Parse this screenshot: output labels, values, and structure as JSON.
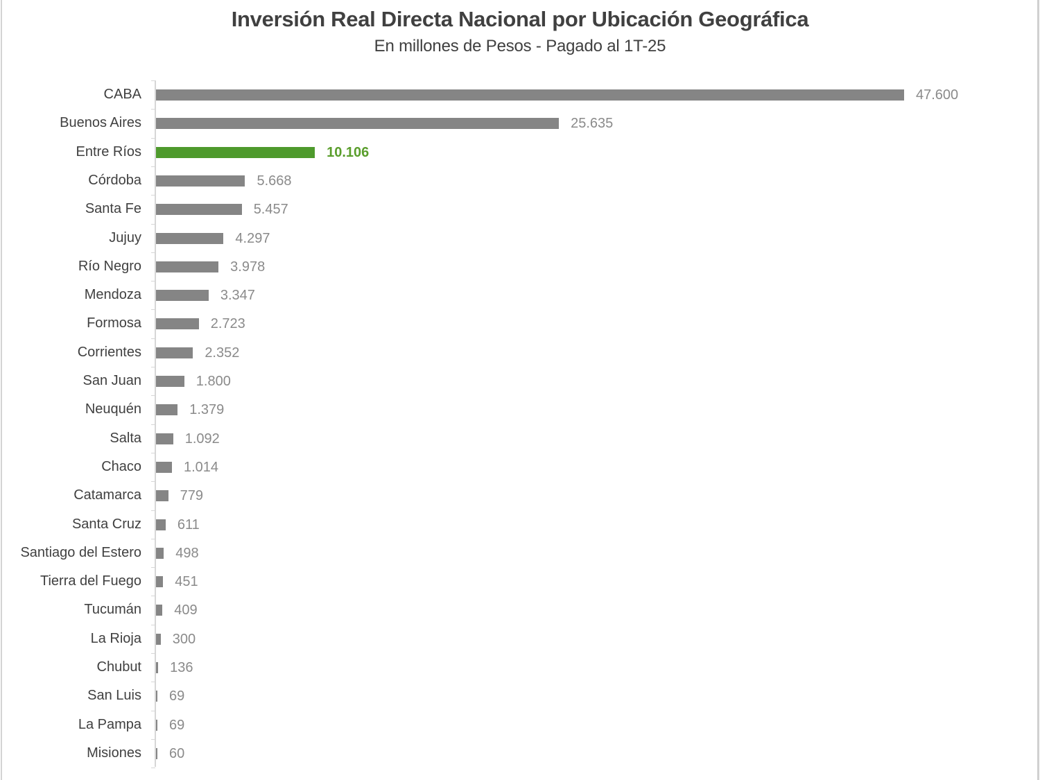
{
  "chart_data": {
    "type": "bar",
    "orientation": "horizontal",
    "title": "Inversión Real Directa Nacional por Ubicación Geográfica",
    "subtitle": "En millones de Pesos - Pagado al 1T-25",
    "xlabel": "",
    "ylabel": "",
    "grid": false,
    "legend": null,
    "highlight_category": "Entre Ríos",
    "colors": {
      "default": "#858585",
      "highlight": "#4e9a2c",
      "label_default": "#8a8a8a",
      "label_highlight": "#5a9e2c"
    },
    "categories": [
      "CABA",
      "Buenos Aires",
      "Entre Ríos",
      "Córdoba",
      "Santa Fe",
      "Jujuy",
      "Río Negro",
      "Mendoza",
      "Formosa",
      "Corrientes",
      "San Juan",
      "Neuquén",
      "Salta",
      "Chaco",
      "Catamarca",
      "Santa Cruz",
      "Santiago del Estero",
      "Tierra del Fuego",
      "Tucumán",
      "La Rioja",
      "Chubut",
      "San Luis",
      "La Pampa",
      "Misiones"
    ],
    "values": [
      47600,
      25635,
      10106,
      5668,
      5457,
      4297,
      3978,
      3347,
      2723,
      2352,
      1800,
      1379,
      1092,
      1014,
      779,
      611,
      498,
      451,
      409,
      300,
      136,
      69,
      69,
      60
    ],
    "value_labels": [
      "47.600",
      "25.635",
      "10.106",
      "5.668",
      "5.457",
      "4.297",
      "3.978",
      "3.347",
      "2.723",
      "2.352",
      "1.800",
      "1.379",
      "1.092",
      "1.014",
      "779",
      "611",
      "498",
      "451",
      "409",
      "300",
      "136",
      "69",
      "69",
      "60"
    ],
    "xlim": [
      0,
      47600
    ]
  }
}
